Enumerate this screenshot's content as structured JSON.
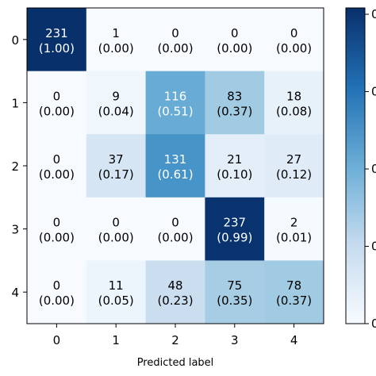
{
  "chart_data": {
    "type": "heatmap",
    "xlabel": "Predicted label",
    "ylabel": "",
    "x_ticks": [
      "0",
      "1",
      "2",
      "3",
      "4"
    ],
    "y_ticks": [
      "0",
      "1",
      "2",
      "3",
      "4"
    ],
    "counts": [
      [
        231,
        1,
        0,
        0,
        0
      ],
      [
        0,
        9,
        116,
        83,
        18
      ],
      [
        0,
        37,
        131,
        21,
        27
      ],
      [
        0,
        0,
        0,
        237,
        2
      ],
      [
        0,
        11,
        48,
        75,
        78
      ]
    ],
    "cell_labels": [
      [
        [
          "231",
          "(1.00)"
        ],
        [
          "1",
          "(0.00)"
        ],
        [
          "0",
          "(0.00)"
        ],
        [
          "0",
          "(0.00)"
        ],
        [
          "0",
          "(0.00)"
        ]
      ],
      [
        [
          "0",
          "(0.00)"
        ],
        [
          "9",
          "(0.04)"
        ],
        [
          "116",
          "(0.51)"
        ],
        [
          "83",
          "(0.37)"
        ],
        [
          "18",
          "(0.08)"
        ]
      ],
      [
        [
          "0",
          "(0.00)"
        ],
        [
          "37",
          "(0.17)"
        ],
        [
          "131",
          "(0.61)"
        ],
        [
          "21",
          "(0.10)"
        ],
        [
          "27",
          "(0.12)"
        ]
      ],
      [
        [
          "0",
          "(0.00)"
        ],
        [
          "0",
          "(0.00)"
        ],
        [
          "0",
          "(0.00)"
        ],
        [
          "237",
          "(0.99)"
        ],
        [
          "2",
          "(0.01)"
        ]
      ],
      [
        [
          "0",
          "(0.00)"
        ],
        [
          "11",
          "(0.05)"
        ],
        [
          "48",
          "(0.23)"
        ],
        [
          "75",
          "(0.35)"
        ],
        [
          "78",
          "(0.37)"
        ]
      ]
    ],
    "normalized": [
      [
        1.0,
        0.0,
        0.0,
        0.0,
        0.0
      ],
      [
        0.0,
        0.04,
        0.51,
        0.37,
        0.08
      ],
      [
        0.0,
        0.17,
        0.61,
        0.1,
        0.12
      ],
      [
        0.0,
        0.0,
        0.0,
        0.99,
        0.01
      ],
      [
        0.0,
        0.05,
        0.23,
        0.35,
        0.37
      ]
    ],
    "colormap": "Blues",
    "colorbar_tick_labels": [
      "0",
      "0",
      "0",
      "0",
      "0"
    ],
    "colors": {
      "colormap_low": "#f7fbff",
      "colormap_mid": "#6baed6",
      "colormap_high": "#08306b",
      "frame": "#000000"
    }
  }
}
